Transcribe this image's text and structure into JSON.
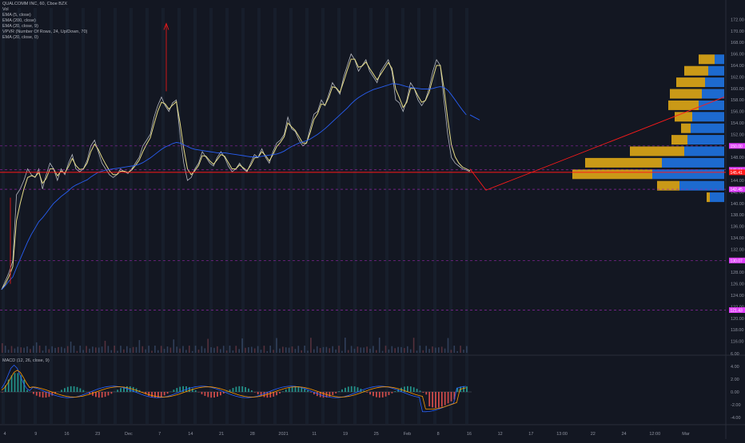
{
  "title": "QUALCOMM INC, 60, Cboe BZX",
  "legend": [
    "Vol",
    "EMA (5, close)",
    "EMA (200, close)",
    "EMA (20, close, 9)",
    "VPVR (Number Of Rows, 24, Up/Down, 70)",
    "EMA (20, close, 0)"
  ],
  "macd_label": "MACD (12, 26, close, 9)",
  "colors": {
    "background": "#131722",
    "price_line": "#d1d4dc",
    "ema_fast": "#f0e68c",
    "ema_slow": "#2962ff",
    "red": "#ff1a1a",
    "magenta": "#e040fb",
    "vp_up": "#1e6fd9",
    "vp_down": "#d4a017"
  },
  "chart_data": [
    {
      "type": "line",
      "ylim": [
        114,
        174
      ],
      "y_ticks": [
        116,
        118,
        120,
        122,
        124,
        126,
        128,
        130,
        132,
        134,
        136,
        138,
        140,
        142,
        144,
        146,
        148,
        150,
        152,
        154,
        156,
        158,
        160,
        162,
        164,
        166,
        168,
        170,
        172
      ],
      "x_labels": [
        "4",
        "9",
        "16",
        "23",
        "Dec",
        "7",
        "14",
        "21",
        "28",
        "2021",
        "11",
        "19",
        "25",
        "Feb",
        "8",
        "16",
        "12",
        "17",
        "13:00",
        "22",
        "24",
        "12:00",
        "Mar"
      ],
      "price_tags": [
        {
          "label": "150.00",
          "value": 150.0,
          "color": "#e040fb"
        },
        {
          "label": "145.84",
          "value": 145.84,
          "color": "#e040fb"
        },
        {
          "label": "145.41",
          "value": 145.41,
          "color": "#ff1a1a"
        },
        {
          "label": "142.45",
          "value": 142.45,
          "color": "#e040fb"
        },
        {
          "label": "130.07",
          "value": 130.07,
          "color": "#e040fb"
        },
        {
          "label": "121.43",
          "value": 121.43,
          "color": "#e040fb"
        }
      ],
      "series": [
        {
          "values": [
            125,
            126.5,
            128,
            130,
            141.5,
            142.5,
            144,
            146,
            145,
            144.5,
            146,
            142.5,
            145,
            147,
            146,
            144,
            146,
            145,
            147,
            148.5,
            146,
            145.5,
            146,
            147.5,
            150,
            151,
            149,
            147,
            146,
            145,
            144.5,
            145,
            146,
            145.5,
            145.2,
            146,
            147,
            148,
            150,
            151,
            152,
            155,
            157,
            158.5,
            157,
            156,
            157.5,
            158,
            152,
            147,
            144,
            144.5,
            146,
            147,
            149,
            148,
            147,
            146.5,
            148,
            149,
            148,
            146.5,
            145.5,
            146,
            147,
            146,
            145.5,
            147,
            148.5,
            148,
            149.5,
            148,
            147,
            149,
            150.5,
            151,
            152,
            155,
            153,
            152.5,
            151,
            150,
            150.5,
            153,
            155.5,
            156,
            158,
            157,
            159,
            161,
            160,
            159,
            162,
            164,
            166,
            165,
            163,
            164,
            165,
            163,
            162,
            161,
            163,
            164,
            165,
            163,
            158,
            157.5,
            156,
            158,
            161,
            160,
            158,
            157,
            158,
            160,
            163,
            165,
            164,
            158,
            152,
            148,
            147,
            146.5,
            146,
            145.8,
            145.5
          ]
        },
        {
          "values": [
            125,
            126,
            127.3,
            129,
            137,
            140,
            142.5,
            144.5,
            144.8,
            144.6,
            145.4,
            143.5,
            144.3,
            146,
            146,
            144.8,
            145.6,
            145.3,
            146.4,
            147.8,
            146.6,
            145.9,
            146,
            147,
            149,
            150.3,
            149.4,
            148,
            146.8,
            145.7,
            145,
            145,
            145.6,
            145.6,
            145.4,
            145.8,
            146.6,
            147.5,
            149,
            150.3,
            151.4,
            153.8,
            156,
            157.6,
            157.3,
            156.4,
            157.1,
            157.7,
            154,
            149.5,
            146,
            145,
            145.7,
            146.6,
            148.3,
            148.2,
            147.4,
            146.8,
            147.6,
            148.5,
            148.2,
            147.1,
            146,
            146,
            146.7,
            146.2,
            145.7,
            146.6,
            147.9,
            148,
            149,
            148.3,
            147.4,
            148.5,
            149.9,
            150.6,
            151.6,
            154,
            153.3,
            152.7,
            151.6,
            150.5,
            150.5,
            152.3,
            154.6,
            155.6,
            157.3,
            157.1,
            158.4,
            160.3,
            160.1,
            159.3,
            161.2,
            163.2,
            165.1,
            165.1,
            163.7,
            163.9,
            164.6,
            163.5,
            162.5,
            161.5,
            162.5,
            163.5,
            164.5,
            163.5,
            159.9,
            158.4,
            156.7,
            157.6,
            160,
            160,
            158.7,
            157.6,
            157.9,
            159.3,
            161.8,
            164,
            164,
            160,
            154.7,
            150.2,
            148.1,
            147,
            146.3,
            146,
            145.7
          ]
        },
        {
          "values": [
            125,
            125.7,
            126.5,
            127.2,
            128.8,
            130.3,
            131.8,
            133.3,
            134.6,
            135.7,
            136.8,
            137.5,
            138.3,
            139.2,
            140,
            140.6,
            141.2,
            141.7,
            142.2,
            142.8,
            143.2,
            143.5,
            143.8,
            144.1,
            144.6,
            145,
            145.4,
            145.6,
            145.8,
            145.9,
            146,
            146.1,
            146.2,
            146.3,
            146.4,
            146.5,
            146.6,
            146.8,
            147.1,
            147.5,
            147.9,
            148.4,
            148.9,
            149.4,
            149.8,
            150.1,
            150.4,
            150.6,
            150.5,
            150.2,
            149.9,
            149.6,
            149.4,
            149.3,
            149.2,
            149.1,
            149,
            148.9,
            148.8,
            148.8,
            148.8,
            148.7,
            148.6,
            148.5,
            148.4,
            148.3,
            148.2,
            148.1,
            148.1,
            148.1,
            148.2,
            148.3,
            148.4,
            148.5,
            148.6,
            148.8,
            149.1,
            149.5,
            149.9,
            150.2,
            150.5,
            150.7,
            150.9,
            151.2,
            151.6,
            152,
            152.5,
            153,
            153.6,
            154.2,
            154.8,
            155.4,
            156,
            156.6,
            157.3,
            157.9,
            158.4,
            158.8,
            159.2,
            159.5,
            159.8,
            160,
            160.2,
            160.4,
            160.6,
            160.8,
            160.8,
            160.7,
            160.5,
            160.3,
            160.2,
            160.1,
            160,
            159.9,
            159.9,
            159.9,
            160,
            160.2,
            160.3,
            160.2,
            159.7,
            158.9,
            158,
            157.1,
            156.2,
            155.4
          ]
        }
      ]
    },
    {
      "type": "bar",
      "name": "MACD",
      "ylim": [
        -5,
        5.5
      ],
      "y_ticks": [
        -4.0,
        -2.0,
        0.0,
        2.0,
        4.0,
        6.0
      ]
    }
  ]
}
